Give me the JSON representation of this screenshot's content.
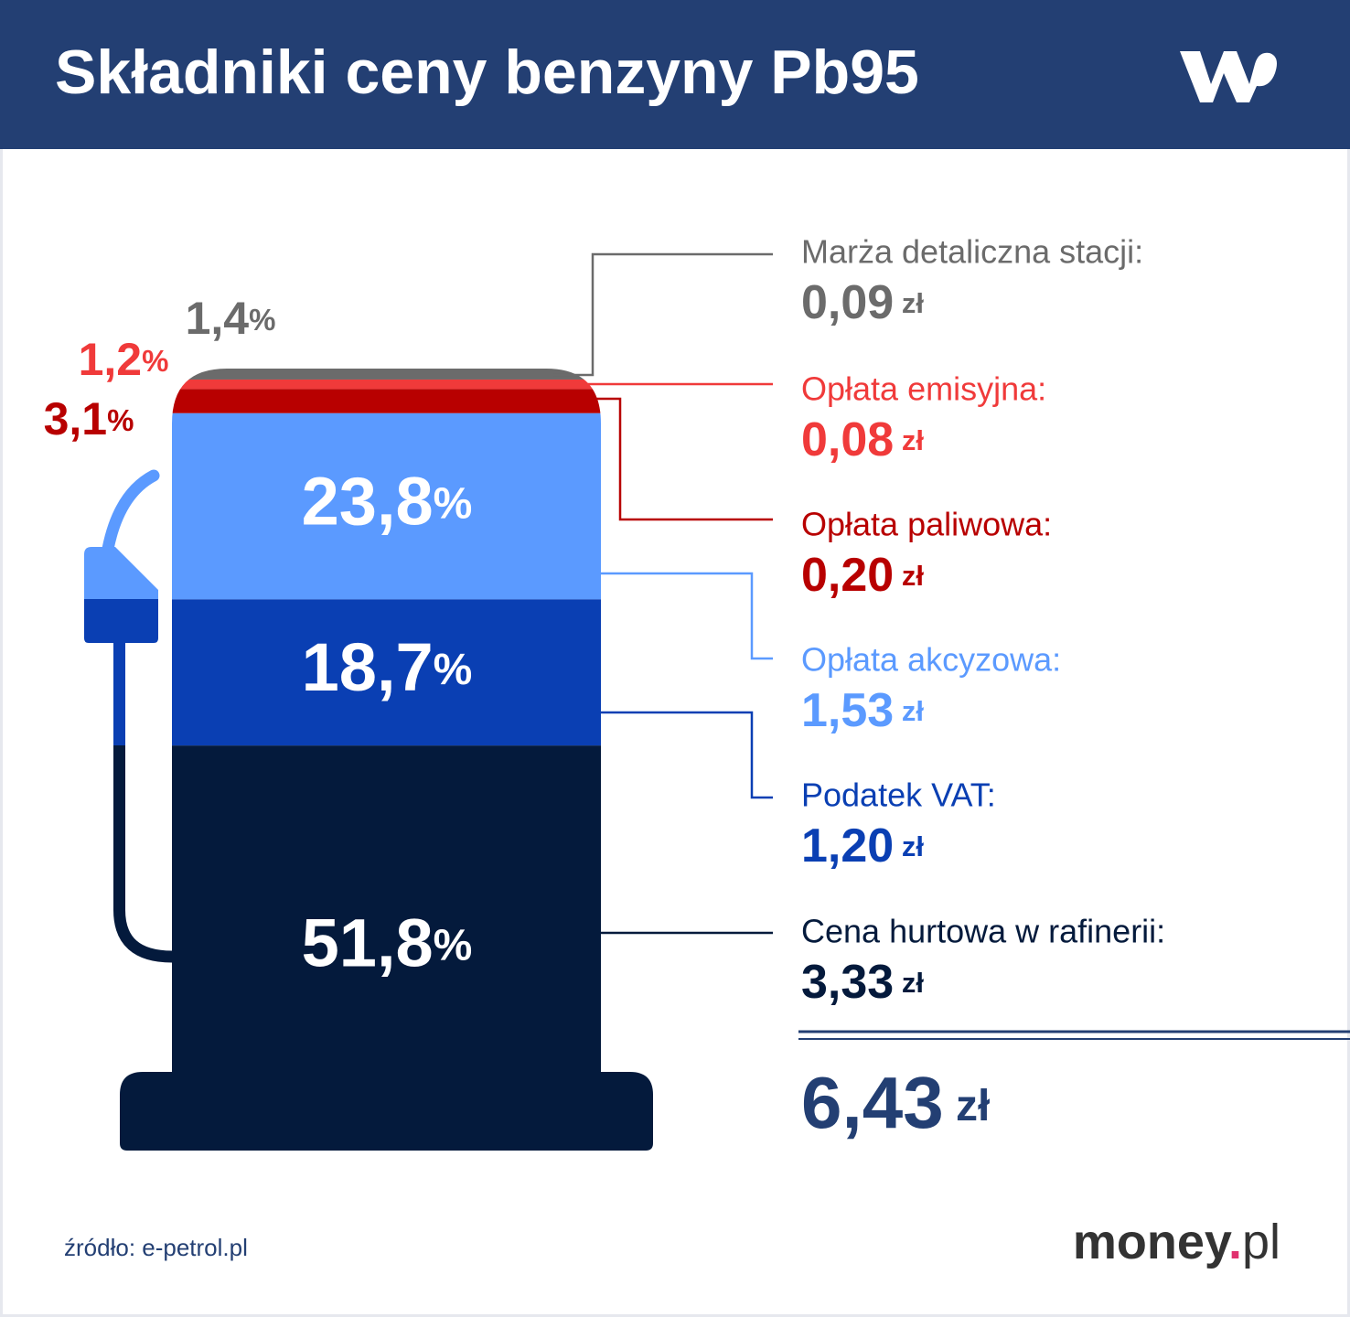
{
  "chart_data": {
    "type": "stacked_bar",
    "title": "Składniki ceny benzyny Pb95",
    "series": [
      {
        "name": "Marża detaliczna stacji:",
        "color": "#6b6b6b",
        "values": [
          1.4
        ],
        "value_labels": [
          "1,4%"
        ],
        "amount_label": "0,09 zł"
      },
      {
        "name": "Opłata emisyjna:",
        "color": "#f03a3a",
        "values": [
          1.2
        ],
        "value_labels": [
          "1,2%"
        ],
        "amount_label": "0,08 zł"
      },
      {
        "name": "Opłata paliwowa:",
        "color": "#b80000",
        "values": [
          3.1
        ],
        "value_labels": [
          "3,1%"
        ],
        "amount_label": "0,20 zł"
      },
      {
        "name": "Opłata akcyzowa:",
        "color": "#5b9aff",
        "values": [
          23.8
        ],
        "value_labels": [
          "23,8%"
        ],
        "amount_label": "1,53 zł"
      },
      {
        "name": "Podatek VAT:",
        "color": "#0a3fb3",
        "values": [
          18.7
        ],
        "value_labels": [
          "18,7%"
        ],
        "amount_label": "1,20 zł"
      },
      {
        "name": "Cena hurtowa w rafinerii:",
        "color": "#041a3c",
        "values": [
          51.8
        ],
        "value_labels": [
          "51,8%"
        ],
        "amount_label": "3,33 zł"
      }
    ],
    "total": "6,43 zł",
    "source": "źródło: e-petrol.pl",
    "brand": "money.pl"
  }
}
